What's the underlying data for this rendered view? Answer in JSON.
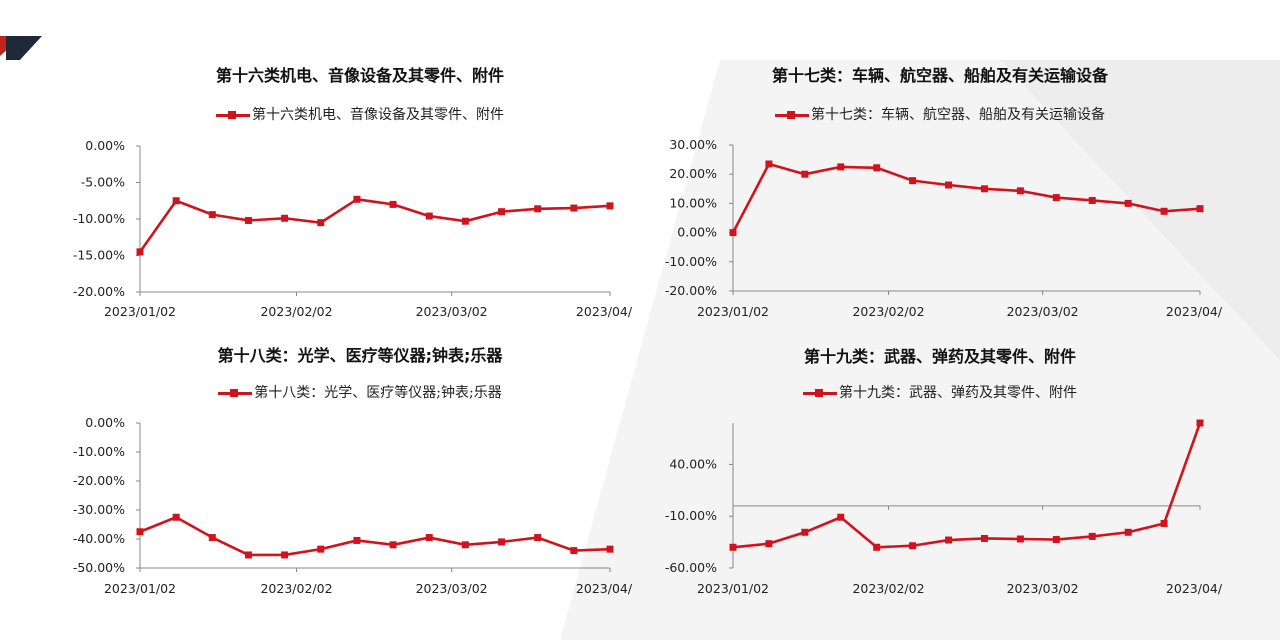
{
  "theme": {
    "series_color": "#d0141f",
    "accent": "#c0241c",
    "dark": "#1f2a38"
  },
  "chart_data": [
    {
      "type": "line",
      "title": "第十六类机电、音像设备及其零件、附件",
      "x_ticks": [
        "2023/01/02",
        "2023/02/02",
        "2023/03/02",
        "2023/04/"
      ],
      "y_ticks": [
        "0.00%",
        "-5.00%",
        "-10.00%",
        "-15.00%",
        "-20.00%"
      ],
      "ylim": [
        -20,
        0
      ],
      "legend": "top-center",
      "series": [
        {
          "name": "第十六类机电、音像设备及其零件、附件",
          "values": [
            -14.5,
            -7.5,
            -9.4,
            -10.2,
            -9.9,
            -10.5,
            -7.3,
            -8.0,
            -9.6,
            -10.3,
            -9.0,
            -8.6,
            -8.5,
            -8.2
          ]
        }
      ]
    },
    {
      "type": "line",
      "title": "第十七类：车辆、航空器、船舶及有关运输设备",
      "x_ticks": [
        "2023/01/02",
        "2023/02/02",
        "2023/03/02",
        "2023/04/"
      ],
      "y_ticks": [
        "30.00%",
        "20.00%",
        "10.00%",
        "0.00%",
        "-10.00%",
        "-20.00%"
      ],
      "ylim": [
        -20,
        30
      ],
      "legend": "top-center",
      "series": [
        {
          "name": "第十七类：车辆、航空器、船舶及有关运输设备",
          "values": [
            0.0,
            23.5,
            20.0,
            22.5,
            22.2,
            17.8,
            16.3,
            15.0,
            14.3,
            12.0,
            11.0,
            10.0,
            7.3,
            8.2
          ]
        }
      ]
    },
    {
      "type": "line",
      "title": "第十八类：光学、医疗等仪器;钟表;乐器",
      "x_ticks": [
        "2023/01/02",
        "2023/02/02",
        "2023/03/02",
        "2023/04/"
      ],
      "y_ticks": [
        "0.00%",
        "-10.00%",
        "-20.00%",
        "-30.00%",
        "-40.00%",
        "-50.00%"
      ],
      "ylim": [
        -50,
        0
      ],
      "legend": "top-center",
      "series": [
        {
          "name": "第十八类：光学、医疗等仪器;钟表;乐器",
          "values": [
            -37.5,
            -32.5,
            -39.5,
            -45.5,
            -45.5,
            -43.5,
            -40.5,
            -42.0,
            -39.5,
            -42.0,
            -41.0,
            -39.5,
            -44.0,
            -43.5
          ]
        }
      ]
    },
    {
      "type": "line",
      "title": "第十九类：武器、弹药及其零件、附件",
      "x_ticks": [
        "2023/01/02",
        "2023/02/02",
        "2023/03/02",
        "2023/04/"
      ],
      "y_ticks": [
        "40.00%",
        "-10.00%",
        "-60.00%"
      ],
      "ylim": [
        -60,
        80
      ],
      "zero_line": true,
      "legend": "top-center",
      "series": [
        {
          "name": "第十九类：武器、弹药及其零件、附件",
          "values": [
            -40.0,
            -36.5,
            -25.5,
            -11.0,
            -40.0,
            -38.5,
            -33.0,
            -31.5,
            -32.0,
            -32.5,
            -29.5,
            -25.5,
            -17.0,
            80.0
          ]
        }
      ]
    }
  ]
}
